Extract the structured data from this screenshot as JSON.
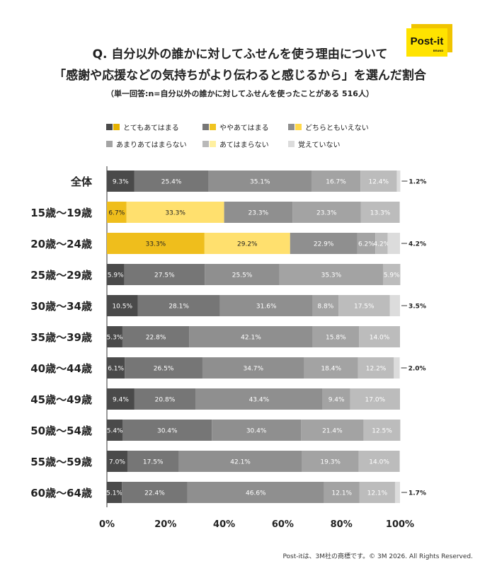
{
  "title": {
    "line1": "Q. 自分以外の誰かに対してふせんを使う理由について",
    "line2": "「感謝や応援などの気持ちがより伝わると感じるから」を選んだ割合",
    "sub": "（単一回答:n=自分以外の誰かに対してふせんを使ったことがある 516人）"
  },
  "logo": {
    "text": "Post-it",
    "sub": "BRAND",
    "colors": {
      "bg": "#ffe300",
      "back": "#f0c400",
      "text": "#111111"
    }
  },
  "legend": [
    {
      "label": "とてもあてはまる",
      "colors": [
        "#4a4a4a",
        "#e6b200"
      ]
    },
    {
      "label": "ややあてはまる",
      "colors": [
        "#777777",
        "#f0c420"
      ]
    },
    {
      "label": "どちらともいえない",
      "colors": [
        "#8f8f8f",
        "#ffd84a"
      ]
    },
    {
      "label": "あまりあてはまらない",
      "colors": [
        "#a4a4a4"
      ]
    },
    {
      "label": "あてはまらない",
      "colors": [
        "#b9b9b9",
        "#fff0a0"
      ]
    },
    {
      "label": "覚えていない",
      "colors": [
        "#dcdcdc"
      ]
    }
  ],
  "chart_data": {
    "type": "bar",
    "orientation": "horizontal",
    "stacked": true,
    "xlim": [
      0,
      100
    ],
    "xticks": [
      "0%",
      "20%",
      "40%",
      "60%",
      "80%",
      "100%"
    ],
    "series_names": [
      "とてもあてはまる",
      "ややあてはまる",
      "どちらともいえない",
      "あまりあてはまらない",
      "あてはまらない",
      "覚えていない"
    ],
    "categories": [
      "全体",
      "15歳〜19歳",
      "20歳〜24歳",
      "25歳〜29歳",
      "30歳〜34歳",
      "35歳〜39歳",
      "40歳〜44歳",
      "45歳〜49歳",
      "50歳〜54歳",
      "55歳〜59歳",
      "60歳〜64歳"
    ],
    "values": [
      [
        9.3,
        25.4,
        35.1,
        16.7,
        12.4,
        1.2
      ],
      [
        6.7,
        33.3,
        23.3,
        23.3,
        13.3,
        0
      ],
      [
        33.3,
        29.2,
        22.9,
        6.2,
        4.2,
        4.2
      ],
      [
        5.9,
        27.5,
        25.5,
        35.3,
        5.9,
        0
      ],
      [
        10.5,
        28.1,
        31.6,
        8.8,
        17.5,
        3.5
      ],
      [
        5.3,
        22.8,
        42.1,
        15.8,
        14.0,
        0
      ],
      [
        6.1,
        26.5,
        34.7,
        18.4,
        12.2,
        2.0
      ],
      [
        9.4,
        20.8,
        43.4,
        9.4,
        17.0,
        0
      ],
      [
        5.4,
        30.4,
        30.4,
        21.4,
        12.5,
        0
      ],
      [
        7.0,
        17.5,
        42.1,
        19.3,
        14.0,
        0
      ],
      [
        5.1,
        22.4,
        46.6,
        12.1,
        12.1,
        1.7
      ]
    ],
    "labels": [
      [
        "9.3%",
        "25.4%",
        "35.1%",
        "16.7%",
        "12.4%",
        "1.2%"
      ],
      [
        "6.7%",
        "33.3%",
        "23.3%",
        "23.3%",
        "13.3%",
        ""
      ],
      [
        "33.3%",
        "29.2%",
        "22.9%",
        "6.2%",
        "4.2%",
        "4.2%"
      ],
      [
        "5.9%",
        "27.5%",
        "25.5%",
        "35.3%",
        "5.9%",
        ""
      ],
      [
        "10.5%",
        "28.1%",
        "31.6%",
        "8.8%",
        "17.5%",
        "3.5%"
      ],
      [
        "5.3%",
        "22.8%",
        "42.1%",
        "15.8%",
        "14.0%",
        ""
      ],
      [
        "6.1%",
        "26.5%",
        "34.7%",
        "18.4%",
        "12.2%",
        "2.0%"
      ],
      [
        "9.4%",
        "20.8%",
        "43.4%",
        "9.4%",
        "17.0%",
        ""
      ],
      [
        "5.4%",
        "30.4%",
        "30.4%",
        "21.4%",
        "12.5%",
        ""
      ],
      [
        "7.0%",
        "17.5%",
        "42.1%",
        "19.3%",
        "14.0%",
        ""
      ],
      [
        "5.1%",
        "22.4%",
        "46.6%",
        "12.1%",
        "12.1%",
        "1.7%"
      ]
    ],
    "outside_label_series": 5,
    "colors_gray": [
      "#4a4a4a",
      "#767676",
      "#8f8f8f",
      "#a3a3a3",
      "#bcbcbc",
      "#dcdcdc"
    ],
    "colors_yellow": [
      "#efbe1c",
      "#ffe06e",
      "#8f8f8f",
      "#a3a3a3",
      "#bcbcbc",
      "#dcdcdc"
    ],
    "highlight_rows": [
      1,
      2
    ]
  },
  "footer": "Post-itは、3M社の商標です。© 3M 2026. All Rights Reserved."
}
